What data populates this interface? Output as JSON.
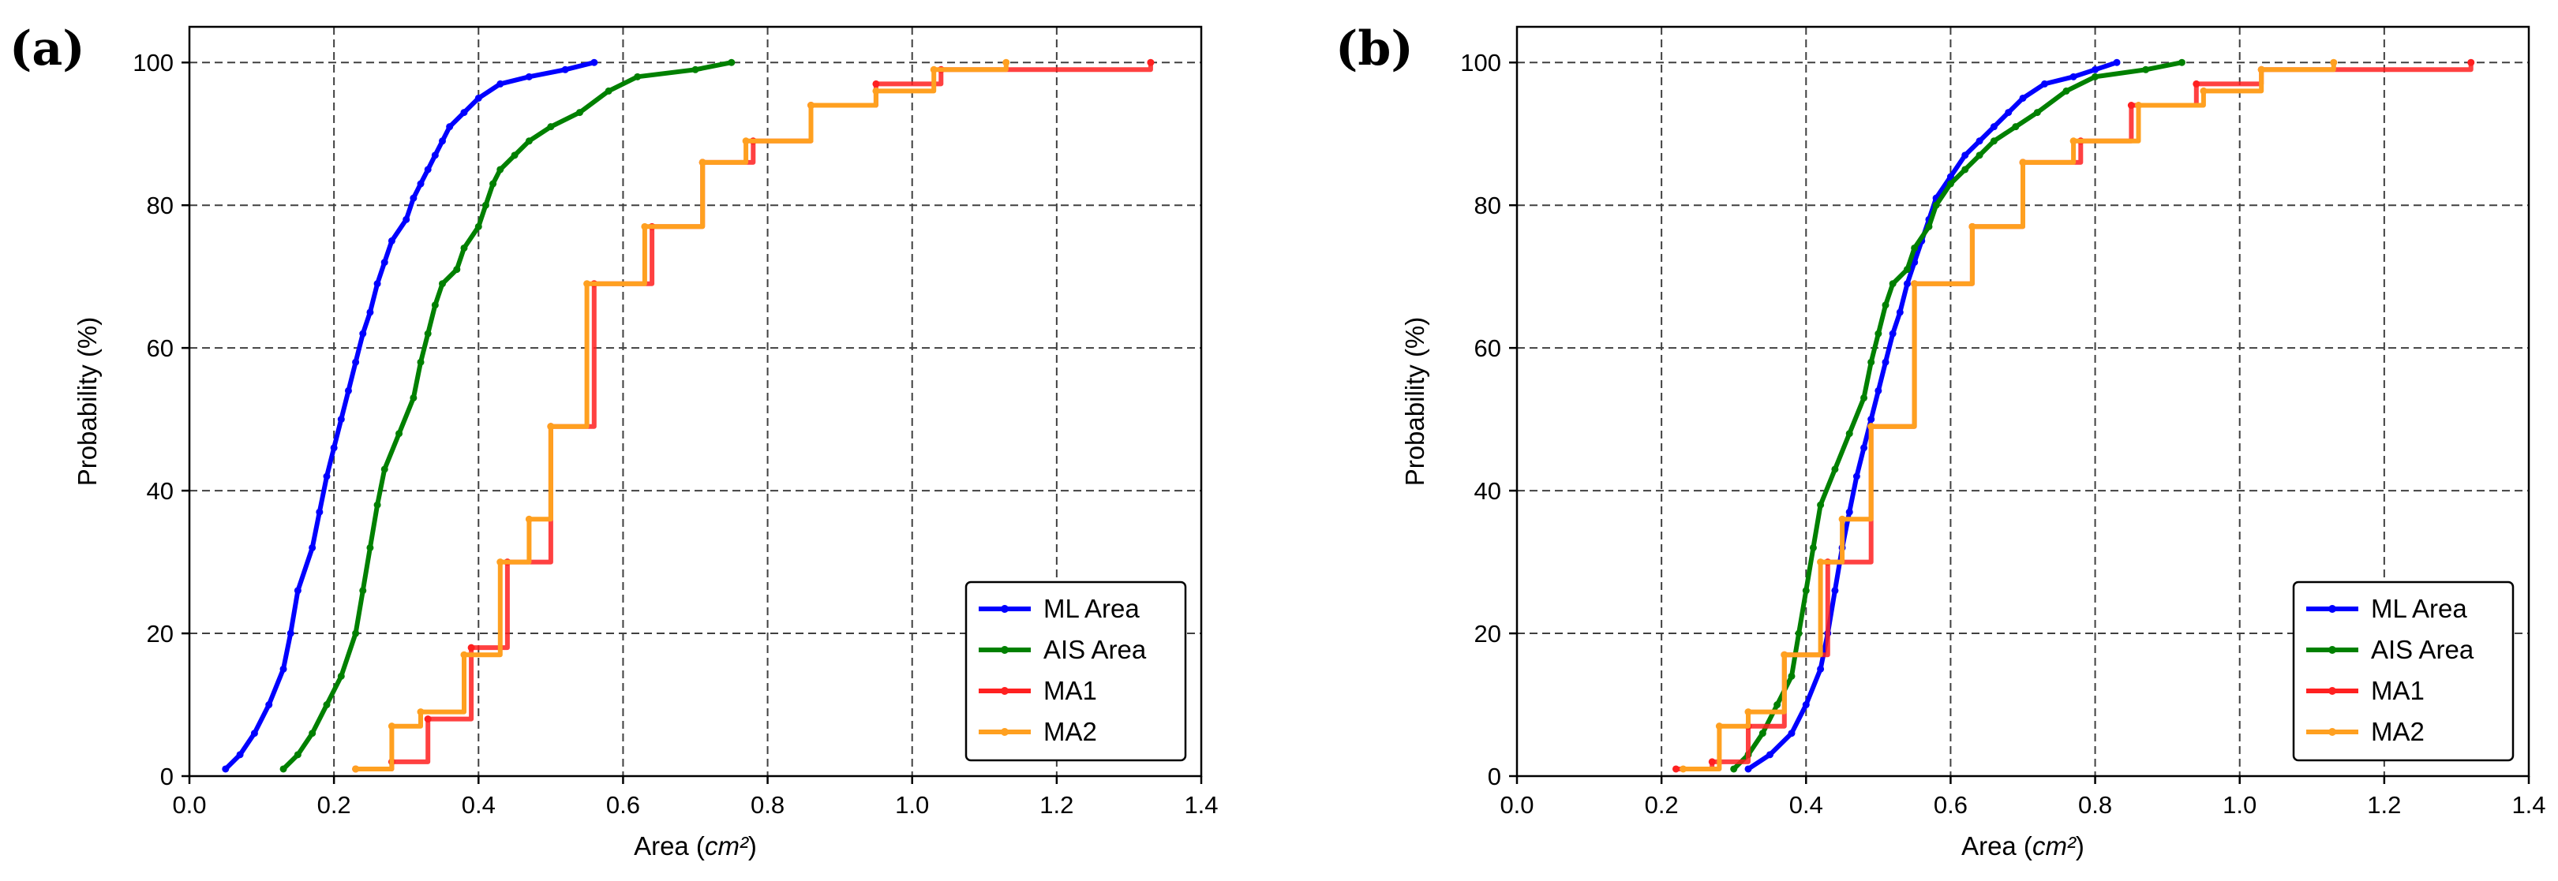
{
  "chart_data": [
    {
      "type": "line",
      "panel_label": "(a)",
      "xlabel_text": "Area (",
      "xlabel_unit": "cm²",
      "xlabel_close": ")",
      "ylabel": "Probability (%)",
      "xlim": [
        0.0,
        1.4
      ],
      "ylim": [
        0,
        105
      ],
      "xticks": [
        0.0,
        0.2,
        0.4,
        0.6,
        0.8,
        1.0,
        1.2,
        1.4
      ],
      "xtick_labels": [
        "0.0",
        "0.2",
        "0.4",
        "0.6",
        "0.8",
        "1.0",
        "1.2",
        "1.4"
      ],
      "yticks": [
        0,
        20,
        40,
        60,
        80,
        100
      ],
      "ytick_labels": [
        "0",
        "20",
        "40",
        "60",
        "80",
        "100"
      ],
      "grid": true,
      "legend_position": "lower-right",
      "series": [
        {
          "name": "ML Area",
          "color": "#0000ff",
          "step": false,
          "x": [
            0.05,
            0.07,
            0.09,
            0.11,
            0.13,
            0.14,
            0.15,
            0.17,
            0.18,
            0.19,
            0.2,
            0.21,
            0.22,
            0.23,
            0.24,
            0.25,
            0.26,
            0.27,
            0.28,
            0.3,
            0.31,
            0.32,
            0.33,
            0.34,
            0.35,
            0.36,
            0.38,
            0.4,
            0.43,
            0.47,
            0.52,
            0.56
          ],
          "y": [
            1,
            3,
            6,
            10,
            15,
            20,
            26,
            32,
            37,
            42,
            46,
            50,
            54,
            58,
            62,
            65,
            69,
            72,
            75,
            78,
            81,
            83,
            85,
            87,
            89,
            91,
            93,
            95,
            97,
            98,
            99,
            100
          ]
        },
        {
          "name": "AIS Area",
          "color": "#008000",
          "step": false,
          "x": [
            0.13,
            0.15,
            0.17,
            0.19,
            0.21,
            0.23,
            0.24,
            0.25,
            0.26,
            0.27,
            0.29,
            0.31,
            0.32,
            0.33,
            0.34,
            0.35,
            0.37,
            0.38,
            0.4,
            0.41,
            0.42,
            0.43,
            0.45,
            0.47,
            0.5,
            0.54,
            0.58,
            0.62,
            0.7,
            0.75
          ],
          "y": [
            1,
            3,
            6,
            10,
            14,
            20,
            26,
            32,
            38,
            43,
            48,
            53,
            58,
            62,
            66,
            69,
            71,
            74,
            77,
            80,
            83,
            85,
            87,
            89,
            91,
            93,
            96,
            98,
            99,
            100
          ]
        },
        {
          "name": "MA1",
          "color": "#ff2020",
          "step": true,
          "x": [
            0.23,
            0.28,
            0.33,
            0.39,
            0.44,
            0.5,
            0.56,
            0.64,
            0.71,
            0.78,
            0.86,
            0.95,
            1.04,
            1.33
          ],
          "y": [
            1,
            2,
            8,
            18,
            30,
            49,
            69,
            77,
            86,
            89,
            94,
            97,
            99,
            100
          ]
        },
        {
          "name": "MA2",
          "color": "#ffa020",
          "step": true,
          "x": [
            0.23,
            0.28,
            0.32,
            0.38,
            0.43,
            0.47,
            0.5,
            0.55,
            0.63,
            0.71,
            0.77,
            0.86,
            0.95,
            1.03,
            1.13
          ],
          "y": [
            1,
            7,
            9,
            17,
            30,
            36,
            49,
            69,
            77,
            86,
            89,
            94,
            96,
            99,
            100
          ]
        }
      ],
      "legend": [
        "ML Area",
        "AIS Area",
        "MA1",
        "MA2"
      ]
    },
    {
      "type": "line",
      "panel_label": "(b)",
      "xlabel_text": "Area (",
      "xlabel_unit": "cm²",
      "xlabel_close": ")",
      "ylabel": "Probability (%)",
      "xlim": [
        0.0,
        1.4
      ],
      "ylim": [
        0,
        105
      ],
      "xticks": [
        0.0,
        0.2,
        0.4,
        0.6,
        0.8,
        1.0,
        1.2,
        1.4
      ],
      "xtick_labels": [
        "0.0",
        "0.2",
        "0.4",
        "0.6",
        "0.8",
        "1.0",
        "1.2",
        "1.4"
      ],
      "yticks": [
        0,
        20,
        40,
        60,
        80,
        100
      ],
      "ytick_labels": [
        "0",
        "20",
        "40",
        "60",
        "80",
        "100"
      ],
      "grid": true,
      "legend_position": "lower-right",
      "series": [
        {
          "name": "ML Area",
          "color": "#0000ff",
          "step": false,
          "x": [
            0.32,
            0.35,
            0.38,
            0.4,
            0.42,
            0.43,
            0.44,
            0.45,
            0.46,
            0.47,
            0.48,
            0.49,
            0.5,
            0.51,
            0.52,
            0.53,
            0.54,
            0.55,
            0.56,
            0.57,
            0.58,
            0.6,
            0.62,
            0.64,
            0.66,
            0.68,
            0.7,
            0.73,
            0.77,
            0.8,
            0.83
          ],
          "y": [
            1,
            3,
            6,
            10,
            15,
            20,
            26,
            32,
            37,
            42,
            46,
            50,
            54,
            58,
            62,
            65,
            69,
            72,
            75,
            78,
            81,
            84,
            87,
            89,
            91,
            93,
            95,
            97,
            98,
            99,
            100
          ]
        },
        {
          "name": "AIS Area",
          "color": "#008000",
          "step": false,
          "x": [
            0.3,
            0.32,
            0.34,
            0.36,
            0.38,
            0.39,
            0.4,
            0.41,
            0.42,
            0.44,
            0.46,
            0.48,
            0.49,
            0.5,
            0.51,
            0.52,
            0.54,
            0.55,
            0.57,
            0.58,
            0.6,
            0.62,
            0.64,
            0.66,
            0.69,
            0.72,
            0.76,
            0.8,
            0.87,
            0.92
          ],
          "y": [
            1,
            3,
            6,
            10,
            14,
            20,
            26,
            32,
            38,
            43,
            48,
            53,
            58,
            62,
            66,
            69,
            71,
            74,
            77,
            80,
            83,
            85,
            87,
            89,
            91,
            93,
            96,
            98,
            99,
            100
          ]
        },
        {
          "name": "MA1",
          "color": "#ff2020",
          "step": true,
          "x": [
            0.22,
            0.27,
            0.32,
            0.37,
            0.43,
            0.49,
            0.55,
            0.63,
            0.7,
            0.78,
            0.85,
            0.94,
            1.03,
            1.32
          ],
          "y": [
            1,
            2,
            7,
            17,
            30,
            49,
            69,
            77,
            86,
            89,
            94,
            97,
            99,
            100
          ]
        },
        {
          "name": "MA2",
          "color": "#ffa020",
          "step": true,
          "x": [
            0.23,
            0.28,
            0.32,
            0.37,
            0.42,
            0.45,
            0.49,
            0.55,
            0.63,
            0.7,
            0.77,
            0.86,
            0.95,
            1.03,
            1.13
          ],
          "y": [
            1,
            7,
            9,
            17,
            30,
            36,
            49,
            69,
            77,
            86,
            89,
            94,
            96,
            99,
            100
          ]
        }
      ],
      "legend": [
        "ML Area",
        "AIS Area",
        "MA1",
        "MA2"
      ]
    }
  ]
}
